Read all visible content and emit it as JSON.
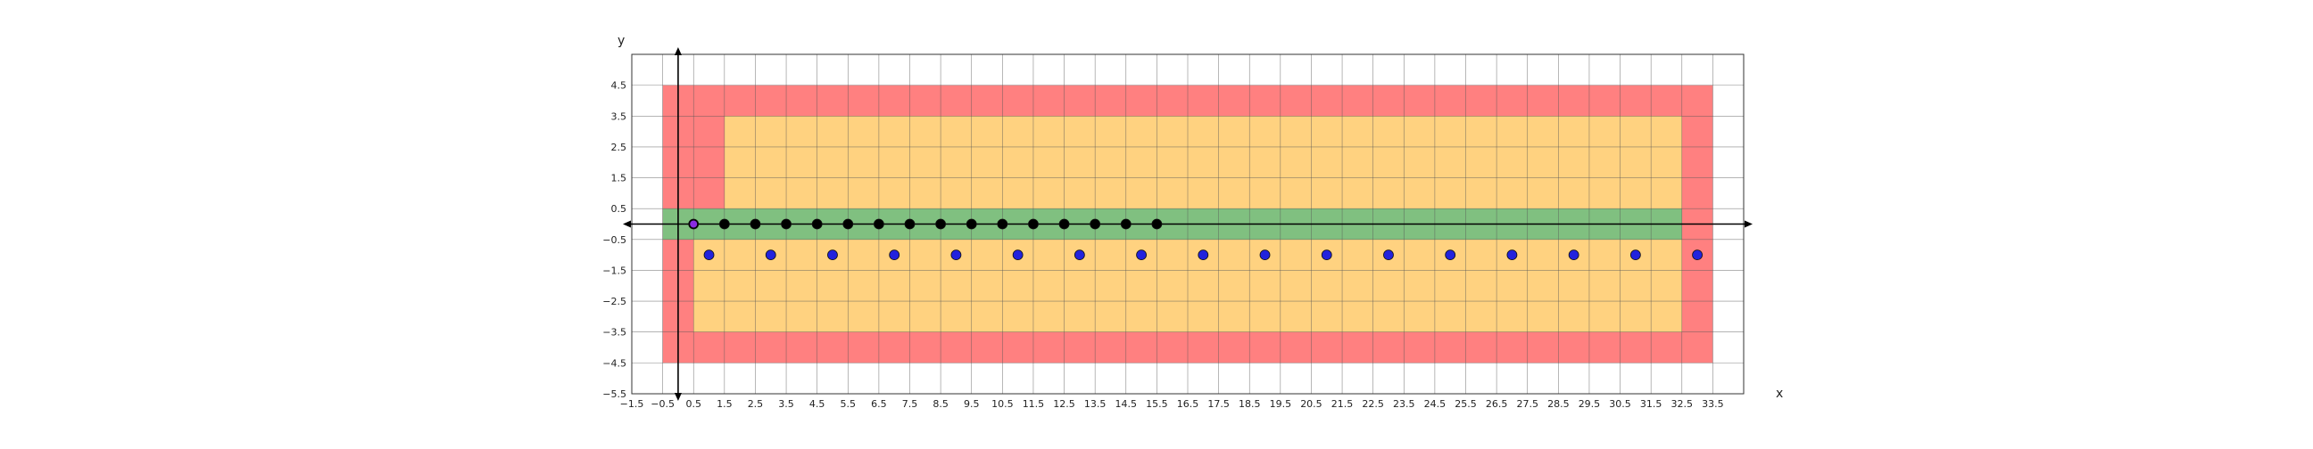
{
  "chart_data": {
    "type": "scatter",
    "xlabel": "x",
    "ylabel": "y",
    "xlim": [
      -1.5,
      34.5
    ],
    "ylim": [
      -5.5,
      5.5
    ],
    "grid": true,
    "x_ticks": [
      -1.5,
      -0.5,
      0.5,
      1.5,
      2.5,
      3.5,
      4.5,
      5.5,
      6.5,
      7.5,
      8.5,
      9.5,
      10.5,
      11.5,
      12.5,
      13.5,
      14.5,
      15.5,
      16.5,
      17.5,
      18.5,
      19.5,
      20.5,
      21.5,
      22.5,
      23.5,
      24.5,
      25.5,
      26.5,
      27.5,
      28.5,
      29.5,
      30.5,
      31.5,
      32.5,
      33.5
    ],
    "x_tick_labels": [
      "−1.5",
      "−0.5",
      "0.5",
      "1.5",
      "2.5",
      "3.5",
      "4.5",
      "5.5",
      "6.5",
      "7.5",
      "8.5",
      "9.5",
      "10.5",
      "11.5",
      "12.5",
      "13.5",
      "14.5",
      "15.5",
      "16.5",
      "17.5",
      "18.5",
      "19.5",
      "20.5",
      "21.5",
      "22.5",
      "23.5",
      "24.5",
      "25.5",
      "26.5",
      "27.5",
      "28.5",
      "29.5",
      "30.5",
      "31.5",
      "32.5",
      "33.5"
    ],
    "y_ticks": [
      4.5,
      3.5,
      2.5,
      1.5,
      0.5,
      -0.5,
      -1.5,
      -2.5,
      -3.5,
      -4.5,
      -5.5
    ],
    "y_tick_labels": [
      "4.5",
      "3.5",
      "2.5",
      "1.5",
      "0.5",
      "−0.5",
      "−1.5",
      "−2.5",
      "−3.5",
      "−4.5",
      "−5.5"
    ],
    "regions": [
      {
        "color": "#ff8080",
        "x": [
          -0.5,
          33.5
        ],
        "y": [
          -4.5,
          4.5
        ]
      },
      {
        "color": "#ffd280",
        "x": [
          1.5,
          32.5
        ],
        "y": [
          -3.5,
          3.5
        ]
      },
      {
        "color": "#ffd280",
        "x": [
          0.5,
          32.5
        ],
        "y": [
          -3.5,
          -0.5
        ]
      },
      {
        "color": "#80c080",
        "x": [
          -0.5,
          32.5
        ],
        "y": [
          -0.5,
          0.5
        ]
      }
    ],
    "series": [
      {
        "color": "#000000",
        "points": [
          [
            0.5,
            0
          ],
          [
            1.5,
            0
          ],
          [
            2.5,
            0
          ],
          [
            3.5,
            0
          ],
          [
            4.5,
            0
          ],
          [
            5.5,
            0
          ],
          [
            6.5,
            0
          ],
          [
            7.5,
            0
          ],
          [
            8.5,
            0
          ],
          [
            9.5,
            0
          ],
          [
            10.5,
            0
          ],
          [
            11.5,
            0
          ],
          [
            12.5,
            0
          ],
          [
            13.5,
            0
          ],
          [
            14.5,
            0
          ],
          [
            15.5,
            0
          ]
        ]
      },
      {
        "color": "#2222dd",
        "points": [
          [
            1,
            -1
          ],
          [
            3,
            -1
          ],
          [
            5,
            -1
          ],
          [
            7,
            -1
          ],
          [
            9,
            -1
          ],
          [
            11,
            -1
          ],
          [
            13,
            -1
          ],
          [
            15,
            -1
          ],
          [
            17,
            -1
          ],
          [
            19,
            -1
          ],
          [
            21,
            -1
          ],
          [
            23,
            -1
          ],
          [
            25,
            -1
          ],
          [
            27,
            -1
          ],
          [
            29,
            -1
          ],
          [
            31,
            -1
          ],
          [
            33,
            -1
          ]
        ]
      }
    ],
    "highlight_point": {
      "x": 0.5,
      "y": 0,
      "color": "#8a2be2"
    }
  }
}
